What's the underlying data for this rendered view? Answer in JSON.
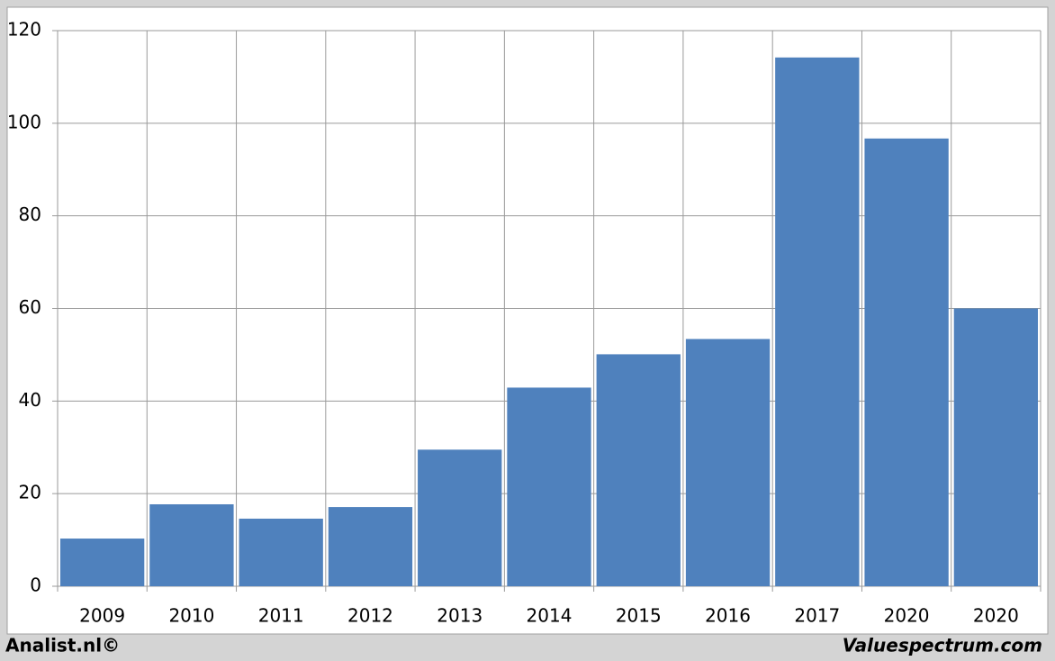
{
  "chart_data": {
    "type": "bar",
    "categories": [
      "2009",
      "2010",
      "2011",
      "2012",
      "2013",
      "2014",
      "2015",
      "2016",
      "2017",
      "2020",
      "2020"
    ],
    "values": [
      10.3,
      17.7,
      14.6,
      17.1,
      29.5,
      42.9,
      50.1,
      53.4,
      114.2,
      96.7,
      60.0
    ],
    "color": "#4f81bd",
    "ylim": [
      0,
      120
    ],
    "yticks": [
      0,
      20,
      40,
      60,
      80,
      100,
      120
    ],
    "grid": true,
    "footer_left": "Analist.nl©",
    "footer_right": "Valuespectrum.com"
  }
}
